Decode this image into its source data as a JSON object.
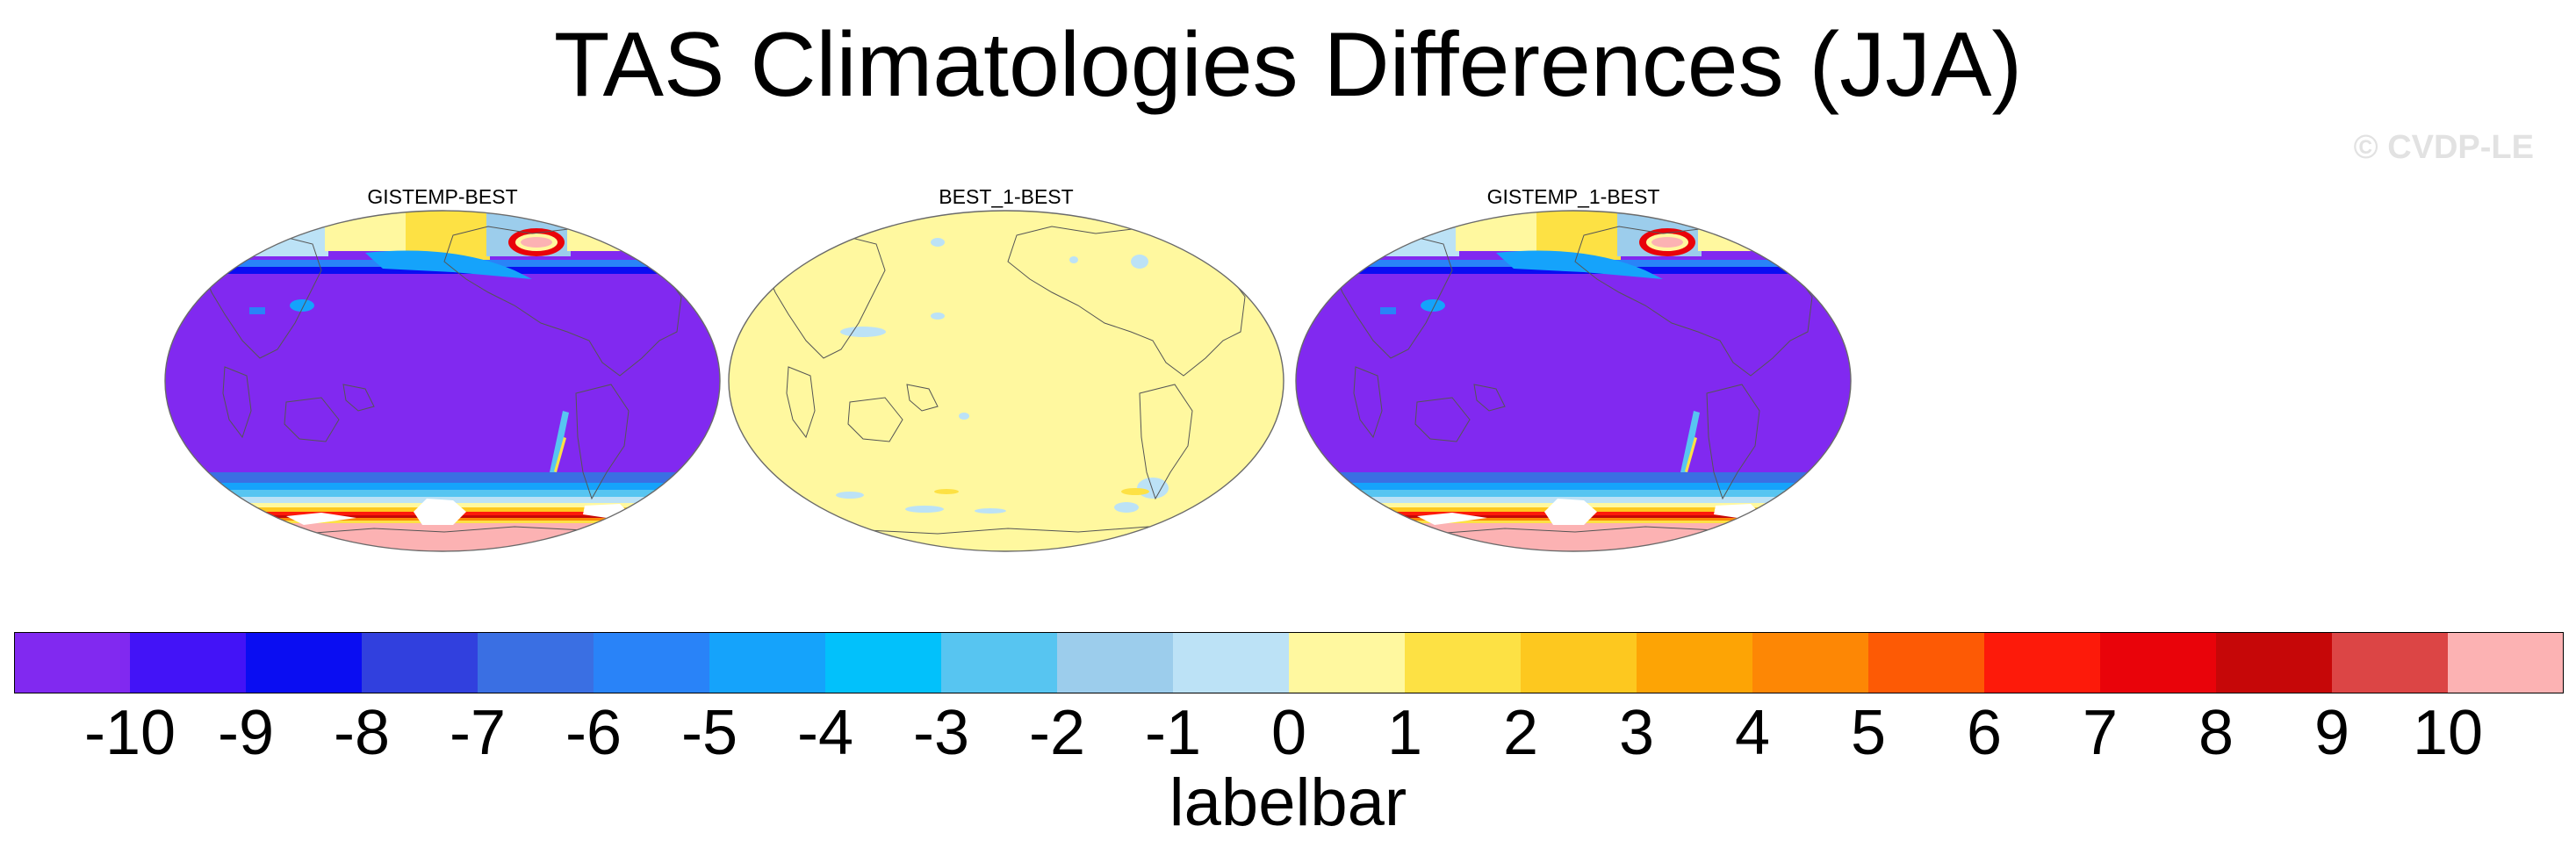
{
  "figure": {
    "title": "TAS Climatologies Differences (JJA)",
    "watermark": "© CVDP-LE"
  },
  "panels": [
    {
      "title": "GISTEMP-BEST",
      "pattern": "difference-cold"
    },
    {
      "title": "BEST_1-BEST",
      "pattern": "near-zero"
    },
    {
      "title": "GISTEMP_1-BEST",
      "pattern": "difference-cold"
    }
  ],
  "labelbar": {
    "title": "labelbar",
    "ticks": [
      "-10",
      "-9",
      "-8",
      "-7",
      "-6",
      "-5",
      "-4",
      "-3",
      "-2",
      "-1",
      "0",
      "1",
      "2",
      "3",
      "4",
      "5",
      "6",
      "7",
      "8",
      "9",
      "10"
    ],
    "colors": [
      "#8129f0",
      "#4313f7",
      "#0a0df2",
      "#3140de",
      "#3a6fe3",
      "#2983f8",
      "#15a3fb",
      "#02c1fb",
      "#57c5f1",
      "#9ccdec",
      "#bce2f6",
      "#fff89f",
      "#fde144",
      "#fdc81f",
      "#fda405",
      "#fd8705",
      "#fd5a05",
      "#fd1a0a",
      "#e9030a",
      "#c60708",
      "#dc4545",
      "#fcb2b3"
    ]
  },
  "colors": {
    "land_outline": "#555555",
    "globe_outline": "#6a6a6a",
    "missing": "#ffffff"
  }
}
